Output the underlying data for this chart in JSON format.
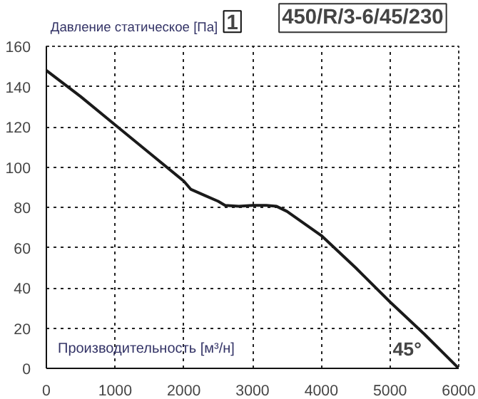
{
  "chart_data": {
    "type": "line",
    "title": "450/R/3-6/45/230",
    "xlabel": "Производительность [м³/н]",
    "ylabel": "Давление статическое [Па]",
    "annotations": [
      "1",
      "45°"
    ],
    "x": [
      0,
      500,
      1000,
      1500,
      2000,
      2100,
      2300,
      2500,
      2600,
      2800,
      3000,
      3200,
      3350,
      3500,
      3750,
      4000,
      4500,
      5000,
      5500,
      6000
    ],
    "series": [
      {
        "color": "#1a1a1a",
        "values": [
          148,
          135,
          121,
          107,
          93,
          89,
          86,
          83,
          81,
          80.5,
          81,
          81,
          80.5,
          78,
          72,
          66,
          50,
          33,
          17,
          0
        ]
      }
    ],
    "xlim": [
      0,
      6000
    ],
    "ylim": [
      0,
      160
    ],
    "xticks": [
      0,
      1000,
      2000,
      3000,
      4000,
      5000,
      6000
    ],
    "yticks": [
      0,
      20,
      40,
      60,
      80,
      100,
      120,
      140,
      160
    ],
    "grid": true,
    "line_style": "solid"
  }
}
